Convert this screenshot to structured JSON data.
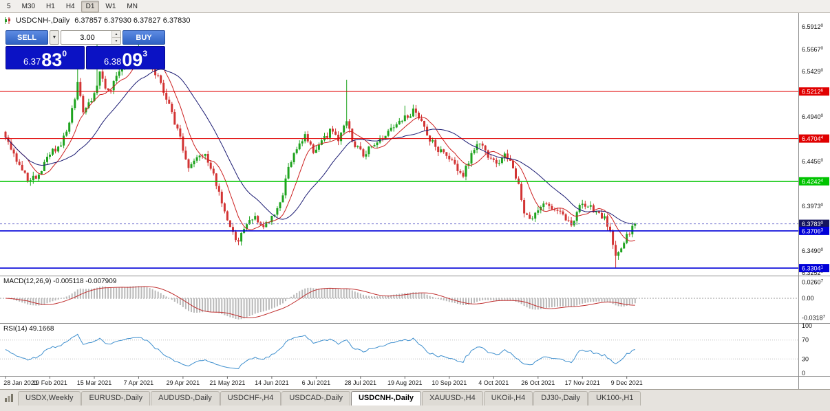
{
  "colors": {
    "bull": "#1ea31e",
    "bear": "#d23434",
    "ma_fast": "#cc2020",
    "ma_slow": "#1a1a72",
    "macd_hist": "#b9b9b9",
    "macd_signal": "#c03030",
    "rsi_line": "#3e8fce",
    "level_red": "#e00000",
    "level_green": "#00c400",
    "level_blue": "#0000d8",
    "badge_current": "#15155f",
    "current_price_line": "#7a7ad0",
    "panel_blue": "#0b12c4"
  },
  "toolbar": {
    "timeframes": [
      "5",
      "M30",
      "H1",
      "H4",
      "D1",
      "W1",
      "MN"
    ],
    "active": "D1"
  },
  "chart_header": {
    "symbol_label": "USDCNH-,Daily",
    "ohlc": "6.37857 6.37930 6.37827 6.37830"
  },
  "trade_panel": {
    "sell_label": "SELL",
    "buy_label": "BUY",
    "volume": "3.00",
    "sell_price": {
      "prefix": "6.37",
      "big": "83",
      "sup": "0"
    },
    "buy_price": {
      "prefix": "6.38",
      "big": "09",
      "sup": "3"
    }
  },
  "tabs": [
    "USDX,Weekly",
    "EURUSD-,Daily",
    "AUDUSD-,Daily",
    "USDCHF-,H4",
    "USDCAD-,Daily",
    "USDCNH-,Daily",
    "XAUUSD-,H4",
    "UKOil-,H4",
    "DJ30-,Daily",
    "UK100-,H1"
  ],
  "active_tab": "USDCNH-,Daily",
  "chart_data": {
    "type": "candlestick",
    "symbol": "USDCNH-",
    "timeframe": "Daily",
    "candle_count": 228,
    "current_price": 6.3783,
    "y_range": [
      6.3223,
      6.6053
    ],
    "waypoints": [
      [
        0,
        6.47
      ],
      [
        4,
        6.448
      ],
      [
        8,
        6.424
      ],
      [
        12,
        6.43
      ],
      [
        16,
        6.455
      ],
      [
        20,
        6.462
      ],
      [
        23,
        6.488
      ],
      [
        26,
        6.53
      ],
      [
        28,
        6.5
      ],
      [
        31,
        6.512
      ],
      [
        34,
        6.54
      ],
      [
        37,
        6.52
      ],
      [
        40,
        6.536
      ],
      [
        44,
        6.556
      ],
      [
        48,
        6.568
      ],
      [
        52,
        6.552
      ],
      [
        56,
        6.53
      ],
      [
        60,
        6.498
      ],
      [
        63,
        6.47
      ],
      [
        66,
        6.438
      ],
      [
        69,
        6.448
      ],
      [
        72,
        6.455
      ],
      [
        75,
        6.43
      ],
      [
        78,
        6.4
      ],
      [
        81,
        6.372
      ],
      [
        84,
        6.36
      ],
      [
        87,
        6.376
      ],
      [
        90,
        6.388
      ],
      [
        93,
        6.372
      ],
      [
        96,
        6.386
      ],
      [
        99,
        6.398
      ],
      [
        102,
        6.438
      ],
      [
        105,
        6.462
      ],
      [
        108,
        6.472
      ],
      [
        111,
        6.458
      ],
      [
        114,
        6.468
      ],
      [
        117,
        6.478
      ],
      [
        120,
        6.47
      ],
      [
        123,
        6.488
      ],
      [
        126,
        6.462
      ],
      [
        129,
        6.452
      ],
      [
        132,
        6.464
      ],
      [
        135,
        6.47
      ],
      [
        138,
        6.478
      ],
      [
        141,
        6.484
      ],
      [
        144,
        6.492
      ],
      [
        147,
        6.5
      ],
      [
        150,
        6.488
      ],
      [
        153,
        6.47
      ],
      [
        156,
        6.458
      ],
      [
        159,
        6.452
      ],
      [
        162,
        6.44
      ],
      [
        165,
        6.43
      ],
      [
        168,
        6.455
      ],
      [
        171,
        6.464
      ],
      [
        174,
        6.452
      ],
      [
        177,
        6.444
      ],
      [
        180,
        6.452
      ],
      [
        183,
        6.44
      ],
      [
        185,
        6.42
      ],
      [
        187,
        6.39
      ],
      [
        189,
        6.382
      ],
      [
        192,
        6.396
      ],
      [
        195,
        6.402
      ],
      [
        198,
        6.394
      ],
      [
        201,
        6.386
      ],
      [
        204,
        6.378
      ],
      [
        207,
        6.396
      ],
      [
        210,
        6.398
      ],
      [
        212,
        6.392
      ],
      [
        214,
        6.388
      ],
      [
        216,
        6.384
      ],
      [
        218,
        6.372
      ],
      [
        220,
        6.344
      ],
      [
        222,
        6.352
      ],
      [
        224,
        6.366
      ],
      [
        226,
        6.374
      ],
      [
        227,
        6.3783
      ]
    ],
    "spikes": [
      [
        26,
        "high",
        6.558
      ],
      [
        33,
        "high",
        6.578
      ],
      [
        48,
        "high",
        6.578
      ],
      [
        84,
        "low",
        6.3555
      ],
      [
        123,
        "high",
        6.534
      ],
      [
        144,
        "high",
        6.506
      ],
      [
        220,
        "low",
        6.331
      ]
    ],
    "levels": [
      {
        "price": 6.52126,
        "color": "red"
      },
      {
        "price": 6.47044,
        "color": "red"
      },
      {
        "price": 6.42424,
        "color": "green"
      },
      {
        "price": 6.37063,
        "color": "blue"
      },
      {
        "price": 6.33041,
        "color": "blue"
      }
    ],
    "scale_ticks": [
      "6.59120",
      "6.56670",
      "6.54290",
      "6.49400",
      "6.44560",
      "6.39730",
      "6.34900",
      "6.32520"
    ],
    "scale_tick_prices": [
      6.5912,
      6.5667,
      6.5429,
      6.494,
      6.4456,
      6.3973,
      6.349,
      6.3252
    ],
    "badges": [
      {
        "text": "6.52126",
        "price": 6.52126,
        "type": "red"
      },
      {
        "text": "6.47044",
        "price": 6.47044,
        "type": "red"
      },
      {
        "text": "6.42424",
        "price": 6.42424,
        "type": "green"
      },
      {
        "text": "6.37830",
        "price": 6.3783,
        "type": "current"
      },
      {
        "text": "6.37063",
        "price": 6.37063,
        "type": "blue"
      },
      {
        "text": "6.33041",
        "price": 6.33041,
        "type": "blue"
      }
    ],
    "date_ticks": [
      {
        "label": "28 Jan 2021",
        "i": 0
      },
      {
        "label": "19 Feb 2021",
        "i": 16
      },
      {
        "label": "15 Mar 2021",
        "i": 32
      },
      {
        "label": "7 Apr 2021",
        "i": 48
      },
      {
        "label": "29 Apr 2021",
        "i": 64
      },
      {
        "label": "21 May 2021",
        "i": 80
      },
      {
        "label": "14 Jun 2021",
        "i": 96
      },
      {
        "label": "6 Jul 2021",
        "i": 112
      },
      {
        "label": "28 Jul 2021",
        "i": 128
      },
      {
        "label": "19 Aug 2021",
        "i": 144
      },
      {
        "label": "10 Sep 2021",
        "i": 160
      },
      {
        "label": "4 Oct 2021",
        "i": 176
      },
      {
        "label": "26 Oct 2021",
        "i": 192
      },
      {
        "label": "17 Nov 2021",
        "i": 208
      },
      {
        "label": "9 Dec 2021",
        "i": 224
      }
    ],
    "macd": {
      "label": "MACD(12,26,9) -0.005118 -0.007909",
      "scale": [
        {
          "text": "0.02607",
          "v": 0.02607
        },
        {
          "text": "0.00",
          "v": 0
        },
        {
          "text": "-0.03187",
          "v": -0.03187
        }
      ]
    },
    "rsi": {
      "label": "RSI(14) 49.1668",
      "levels": [
        100,
        70,
        30,
        0
      ]
    }
  }
}
